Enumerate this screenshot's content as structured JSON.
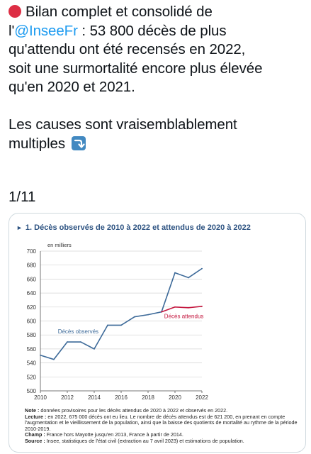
{
  "tweet": {
    "line1": "Bilan complet et consolidé de",
    "line2_prefix": "l'",
    "mention": "@InseeFr",
    "line2_suffix": " : 53 800 décès de plus",
    "line3": "qu'attendu ont été recensés en 2022,",
    "line4": "soit une surmortalité encore plus élevée",
    "line5": "qu'en 2020 et 2021.",
    "line6": "Les causes sont vraisemblablement",
    "line7": "multiples",
    "thread_count": "1/11",
    "icons": [
      "red-circle-icon",
      "right-arrow-curving-down-icon"
    ]
  },
  "chart_data": {
    "type": "line",
    "title": "1. Décès observés de 2010 à 2022 et attendus de 2020 à 2022",
    "unit_label": "en milliers",
    "xlim": [
      2010,
      2022
    ],
    "ylim": [
      500,
      700
    ],
    "x_ticks": [
      2010,
      2012,
      2014,
      2016,
      2018,
      2020,
      2022
    ],
    "y_ticks": [
      500,
      520,
      540,
      560,
      580,
      600,
      620,
      640,
      660,
      680,
      700
    ],
    "series": [
      {
        "name": "Décès observés",
        "color": "#3d6a99",
        "x": [
          2010,
          2011,
          2012,
          2013,
          2014,
          2015,
          2016,
          2017,
          2018,
          2019,
          2020,
          2021,
          2022
        ],
        "y": [
          551,
          545,
          570,
          570,
          560,
          594,
          594,
          606,
          609,
          613,
          669,
          662,
          675
        ]
      },
      {
        "name": "Décès attendus",
        "color": "#c4163e",
        "x": [
          2019,
          2020,
          2021,
          2022
        ],
        "y": [
          613,
          620,
          619,
          621
        ]
      }
    ],
    "grid": true
  },
  "notes": [
    {
      "label": "Note :",
      "text": " données provisoires pour les décès attendus de 2020 à 2022 et observés en 2022."
    },
    {
      "label": "Lecture :",
      "text": " en 2022, 675 000 décès ont eu lieu. Le nombre de décès attendus est de 621 200, en prenant en compte l'augmentation et le vieillissement de la population, ainsi que la baisse des quotients de mortalité au rythme de la période 2010-2019."
    },
    {
      "label": "Champ :",
      "text": " France hors Mayotte jusqu'en 2013, France à partir de 2014."
    },
    {
      "label": "Source :",
      "text": " Insee, statistiques de l'état civil (extraction au 7 avril 2023) et estimations de population."
    }
  ]
}
